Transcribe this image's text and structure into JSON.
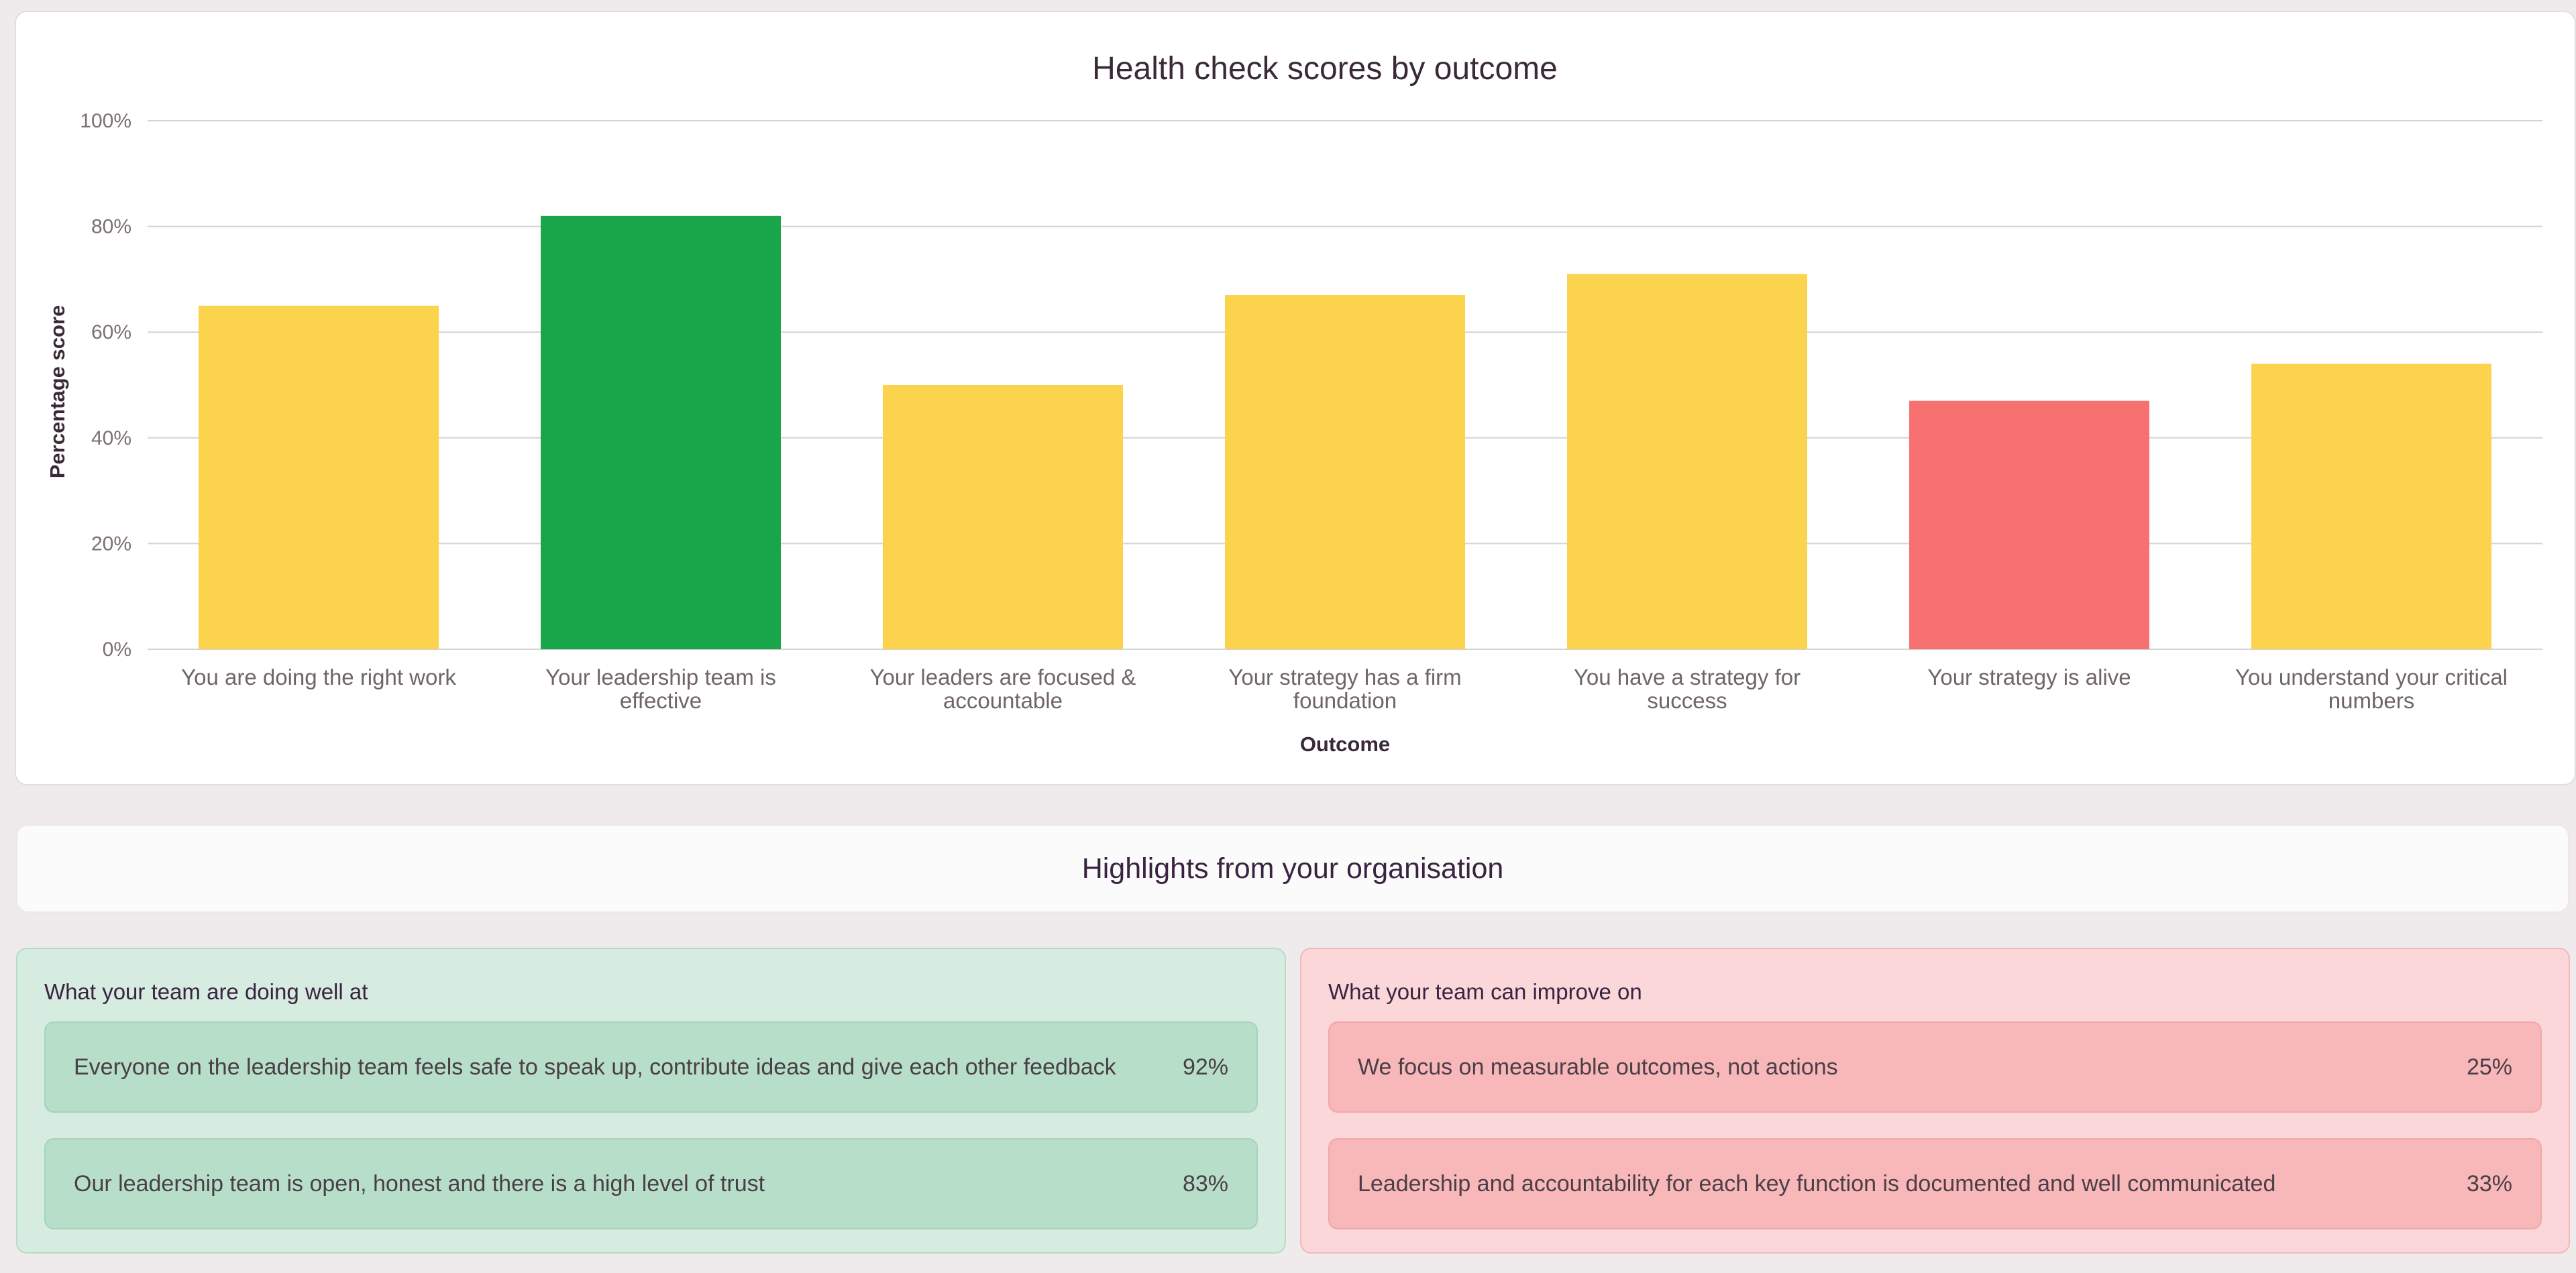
{
  "colors": {
    "green": "#19a54a",
    "yellow": "#fcd34d",
    "red": "#f87171"
  },
  "chart_data": {
    "type": "bar",
    "title": "Health check scores by outcome",
    "xlabel": "Outcome",
    "ylabel": "Percentage score",
    "ylim": [
      0,
      100
    ],
    "yticks": [
      "0%",
      "20%",
      "40%",
      "60%",
      "80%",
      "100%"
    ],
    "grid": true,
    "categories": [
      [
        "You are doing the right work"
      ],
      [
        "Your leadership team is",
        "effective"
      ],
      [
        "Your leaders are focused &",
        "accountable"
      ],
      [
        "Your strategy has a firm",
        "foundation"
      ],
      [
        "You have a strategy for",
        "success"
      ],
      [
        "Your strategy is alive"
      ],
      [
        "You understand your critical",
        "numbers"
      ]
    ],
    "values": [
      65,
      82,
      50,
      67,
      71,
      47,
      54
    ],
    "bar_colors": [
      "yellow",
      "green",
      "yellow",
      "yellow",
      "yellow",
      "red",
      "yellow"
    ]
  },
  "highlights": {
    "title": "Highlights from your organisation"
  },
  "doing_well": {
    "heading": "What your team are doing well at",
    "items": [
      {
        "text": "Everyone on the leadership team feels safe to speak up, contribute ideas and give each other feedback",
        "pct": "92%"
      },
      {
        "text": "Our leadership team is open, honest and there is a high level of trust",
        "pct": "83%"
      }
    ]
  },
  "improve_on": {
    "heading": "What your team can improve on",
    "items": [
      {
        "text": "We focus on measurable outcomes, not actions",
        "pct": "25%"
      },
      {
        "text": "Leadership and accountability for each key function is documented and well communicated",
        "pct": "33%"
      }
    ]
  }
}
